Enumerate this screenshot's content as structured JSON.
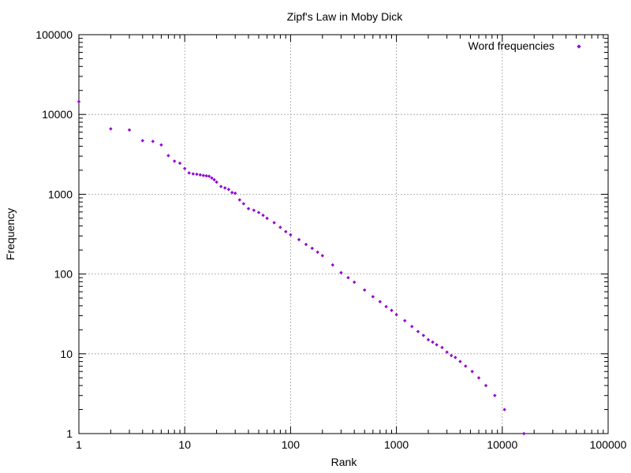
{
  "chart_data": {
    "type": "scatter",
    "title": "Zipf's Law in Moby Dick",
    "xlabel": "Rank",
    "ylabel": "Frequency",
    "xscale": "log",
    "yscale": "log",
    "xlim": [
      1,
      100000
    ],
    "ylim": [
      1,
      100000
    ],
    "x_ticks": [
      "1",
      "10",
      "100",
      "1000",
      "10000",
      "100000"
    ],
    "y_ticks": [
      "1",
      "10",
      "100",
      "1000",
      "10000",
      "100000"
    ],
    "grid": true,
    "legend_position": "top-right",
    "color": "#9400d3",
    "marker": "diamond",
    "series": [
      {
        "name": "Word frequencies",
        "points": [
          [
            1,
            14500
          ],
          [
            2,
            6600
          ],
          [
            3,
            6400
          ],
          [
            4,
            4700
          ],
          [
            5,
            4600
          ],
          [
            6,
            4150
          ],
          [
            7,
            3050
          ],
          [
            8,
            2600
          ],
          [
            9,
            2450
          ],
          [
            10,
            2100
          ],
          [
            11,
            1850
          ],
          [
            12,
            1800
          ],
          [
            13,
            1780
          ],
          [
            14,
            1750
          ],
          [
            15,
            1720
          ],
          [
            16,
            1700
          ],
          [
            17,
            1680
          ],
          [
            18,
            1600
          ],
          [
            19,
            1520
          ],
          [
            20,
            1420
          ],
          [
            22,
            1250
          ],
          [
            24,
            1200
          ],
          [
            26,
            1150
          ],
          [
            28,
            1050
          ],
          [
            30,
            1030
          ],
          [
            33,
            850
          ],
          [
            36,
            760
          ],
          [
            40,
            660
          ],
          [
            45,
            630
          ],
          [
            50,
            590
          ],
          [
            55,
            545
          ],
          [
            60,
            500
          ],
          [
            70,
            440
          ],
          [
            80,
            385
          ],
          [
            90,
            340
          ],
          [
            100,
            310
          ],
          [
            120,
            270
          ],
          [
            140,
            235
          ],
          [
            160,
            210
          ],
          [
            180,
            188
          ],
          [
            200,
            170
          ],
          [
            250,
            130
          ],
          [
            300,
            104
          ],
          [
            350,
            90
          ],
          [
            400,
            79
          ],
          [
            500,
            63
          ],
          [
            600,
            52
          ],
          [
            700,
            45
          ],
          [
            800,
            39
          ],
          [
            900,
            35
          ],
          [
            1000,
            31
          ],
          [
            1200,
            26
          ],
          [
            1400,
            22
          ],
          [
            1600,
            19
          ],
          [
            1800,
            17
          ],
          [
            2000,
            15
          ],
          [
            2200,
            14
          ],
          [
            2400,
            13
          ],
          [
            2700,
            12
          ],
          [
            3000,
            10.5
          ],
          [
            3300,
            9.5
          ],
          [
            3600,
            9
          ],
          [
            4000,
            8
          ],
          [
            4500,
            7
          ],
          [
            5200,
            6
          ],
          [
            6000,
            5
          ],
          [
            7000,
            4
          ],
          [
            8500,
            3
          ],
          [
            10500,
            2
          ],
          [
            16000,
            1
          ]
        ]
      }
    ]
  }
}
